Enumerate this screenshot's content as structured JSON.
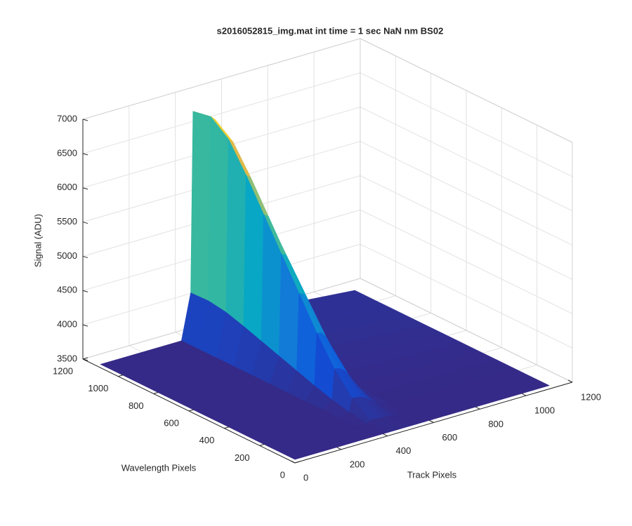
{
  "chart_data": {
    "type": "surface",
    "title": "s2016052815_img.mat int time = 1 sec  NaN nm BS02",
    "xlabel": "Track Pixels",
    "ylabel": "Wavelength Pixels",
    "zlabel": "Signal (ADU)",
    "colormap": "parula",
    "grid": true,
    "xlim": [
      0,
      1200
    ],
    "ylim": [
      0,
      1200
    ],
    "zlim": [
      3500,
      7000
    ],
    "xticks": [
      0,
      200,
      400,
      600,
      800,
      1000,
      1200
    ],
    "yticks": [
      0,
      200,
      400,
      600,
      800,
      1000,
      1200
    ],
    "zticks": [
      3500,
      4000,
      4500,
      5000,
      5500,
      6000,
      6500,
      7000
    ],
    "x": [
      0,
      350,
      390,
      400,
      420,
      440,
      460,
      480,
      500,
      520,
      560,
      1100
    ],
    "y": [
      0,
      100,
      200,
      300,
      400,
      500,
      600,
      700,
      800,
      900,
      1000,
      1100
    ],
    "z": [
      [
        3550,
        3550,
        3550,
        3550,
        3550,
        3550,
        3550,
        3550,
        3550,
        3550,
        3550,
        3550
      ],
      [
        3550,
        3550,
        3560,
        3600,
        3599,
        3595,
        3588,
        3578,
        3568,
        3559,
        3553,
        3550
      ],
      [
        3550,
        3550,
        3600,
        3800,
        3795,
        3775,
        3738,
        3688,
        3638,
        3595,
        3563,
        3550
      ],
      [
        3550,
        3550,
        3660,
        4100,
        4089,
        4045,
        3963,
        3853,
        3743,
        3649,
        3578,
        3550
      ],
      [
        3550,
        3550,
        3740,
        4500,
        4481,
        4405,
        4263,
        4073,
        3883,
        3721,
        3598,
        3550
      ],
      [
        3550,
        3550,
        3830,
        4950,
        4922,
        4810,
        4600,
        4320,
        4040,
        3802,
        3620,
        3550
      ],
      [
        3550,
        3550,
        3920,
        5400,
        5363,
        5215,
        4938,
        4568,
        4198,
        3883,
        3643,
        3550
      ],
      [
        3550,
        3550,
        4010,
        5850,
        5804,
        5620,
        5275,
        4815,
        4355,
        3964,
        3665,
        3550
      ],
      [
        3550,
        3550,
        4100,
        6300,
        6245,
        6025,
        5613,
        5063,
        4513,
        4045,
        3688,
        3550
      ],
      [
        3550,
        3550,
        4180,
        6700,
        6637,
        6385,
        5913,
        5283,
        4653,
        4117,
        3708,
        3550
      ],
      [
        3550,
        3550,
        4220,
        6900,
        6833,
        6565,
        6063,
        5393,
        4723,
        4153,
        3718,
        3550
      ],
      [
        3550,
        3550,
        4210,
        6850,
        6784,
        6520,
        6025,
        5365,
        4705,
        4144,
        3715,
        3550
      ]
    ]
  }
}
